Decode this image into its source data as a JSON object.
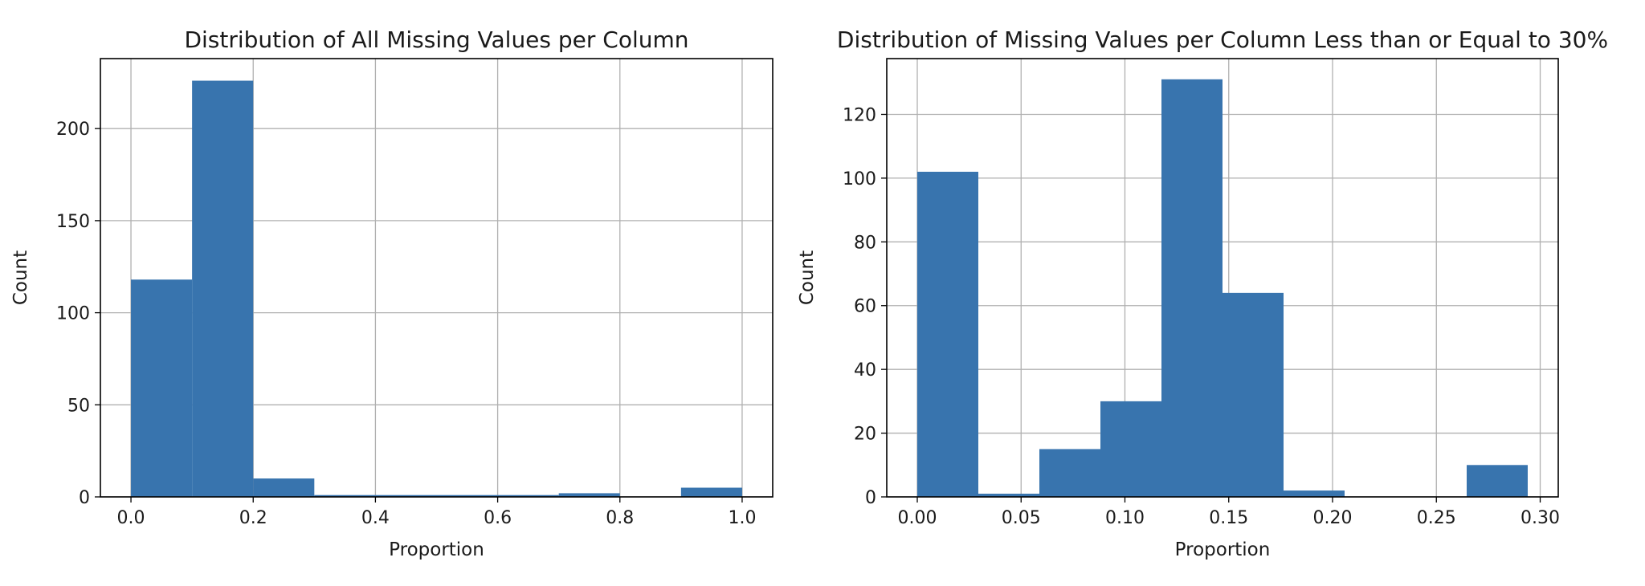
{
  "chart_data": [
    {
      "type": "bar",
      "subtype": "histogram",
      "title": "Distribution of All Missing Values per Column",
      "xlabel": "Proportion",
      "ylabel": "Count",
      "bin_edges": [
        0.0,
        0.1,
        0.2,
        0.3,
        0.4,
        0.5,
        0.6,
        0.7,
        0.8,
        0.9,
        1.0
      ],
      "values": [
        118,
        226,
        10,
        1,
        1,
        1,
        1,
        2,
        0,
        5
      ],
      "xlim": [
        -0.05,
        1.05
      ],
      "ylim": [
        0,
        238
      ],
      "xticks": [
        0.0,
        0.2,
        0.4,
        0.6,
        0.8,
        1.0
      ],
      "xtick_labels": [
        "0.0",
        "0.2",
        "0.4",
        "0.6",
        "0.8",
        "1.0"
      ],
      "yticks": [
        0,
        50,
        100,
        150,
        200
      ],
      "ytick_labels": [
        "0",
        "50",
        "100",
        "150",
        "200"
      ],
      "grid": true,
      "bar_color": "#3874ae"
    },
    {
      "type": "bar",
      "subtype": "histogram",
      "title": "Distribution of Missing Values per Column Less than or Equal to 30%",
      "xlabel": "Proportion",
      "ylabel": "Count",
      "bin_edges": [
        0.0,
        0.0294,
        0.0588,
        0.0882,
        0.1176,
        0.147,
        0.1764,
        0.2058,
        0.2352,
        0.2646,
        0.294
      ],
      "values": [
        102,
        1,
        15,
        30,
        131,
        64,
        2,
        0,
        0,
        10
      ],
      "xlim": [
        -0.0147,
        0.3087
      ],
      "ylim": [
        0,
        137.5
      ],
      "xticks": [
        0.0,
        0.05,
        0.1,
        0.15,
        0.2,
        0.25,
        0.3
      ],
      "xtick_labels": [
        "0.00",
        "0.05",
        "0.10",
        "0.15",
        "0.20",
        "0.25",
        "0.30"
      ],
      "yticks": [
        0,
        20,
        40,
        60,
        80,
        100,
        120
      ],
      "ytick_labels": [
        "0",
        "20",
        "40",
        "60",
        "80",
        "100",
        "120"
      ],
      "grid": true,
      "bar_color": "#3874ae"
    }
  ]
}
